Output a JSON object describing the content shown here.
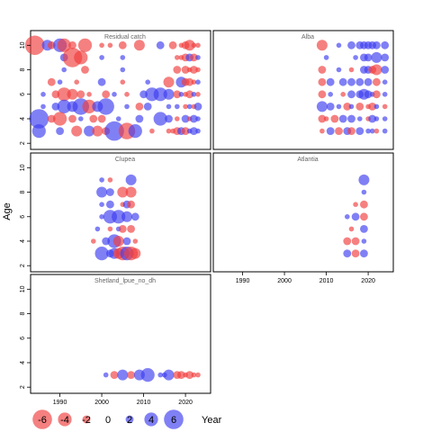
{
  "chart_data": {
    "type": "scatter",
    "encoding": "bubble (size = |residual|, red = negative, blue = positive)",
    "ylabel": "Age",
    "xlabel": "Year",
    "xlim": [
      1983,
      2026
    ],
    "ylim": [
      1.5,
      11.2
    ],
    "x_ticks": [
      1990,
      2000,
      2010,
      2020
    ],
    "y_ticks": [
      2,
      4,
      6,
      8,
      10
    ],
    "colors": {
      "positive": "#3c3cf0",
      "negative": "#f03c3c"
    },
    "legend": {
      "values": [
        -6,
        -4,
        -2,
        0,
        2,
        4,
        6
      ],
      "labels": [
        "-6",
        "-4",
        "-2",
        "0",
        "2",
        "4",
        "6"
      ]
    },
    "panels": [
      {
        "title": "Residual catch",
        "points": [
          [
            1984,
            10,
            -6
          ],
          [
            1987,
            10,
            3
          ],
          [
            1988,
            10,
            -2
          ],
          [
            1990,
            10,
            4
          ],
          [
            1991,
            10,
            -4
          ],
          [
            1993,
            10,
            -2
          ],
          [
            1996,
            10,
            -4
          ],
          [
            2000,
            10,
            -1
          ],
          [
            2002,
            10,
            -1
          ],
          [
            2005,
            10,
            -2
          ],
          [
            2009,
            10,
            -3
          ],
          [
            2014,
            10,
            2
          ],
          [
            2017,
            10,
            -2
          ],
          [
            2019,
            10,
            -1
          ],
          [
            2020,
            10,
            -2
          ],
          [
            2021,
            10,
            -3
          ],
          [
            2022,
            10,
            -1
          ],
          [
            2023,
            10,
            -1
          ],
          [
            1991,
            9,
            2
          ],
          [
            1993,
            9,
            -6
          ],
          [
            1995,
            9,
            -4
          ],
          [
            2000,
            9,
            1
          ],
          [
            2005,
            9,
            1
          ],
          [
            2018,
            9,
            -1
          ],
          [
            2019,
            9,
            -1
          ],
          [
            2020,
            9,
            -2
          ],
          [
            2021,
            9,
            2
          ],
          [
            2022,
            9,
            -2
          ],
          [
            2023,
            9,
            1
          ],
          [
            1991,
            8,
            1
          ],
          [
            1996,
            8,
            -2
          ],
          [
            2005,
            8,
            1
          ],
          [
            2018,
            8,
            -2
          ],
          [
            2020,
            8,
            -2
          ],
          [
            2021,
            8,
            -1
          ],
          [
            2022,
            8,
            -2
          ],
          [
            2023,
            8,
            -1
          ],
          [
            1988,
            7,
            -2
          ],
          [
            1990,
            7,
            1
          ],
          [
            1994,
            7,
            -1
          ],
          [
            2000,
            7,
            2
          ],
          [
            2005,
            7,
            -1
          ],
          [
            2011,
            7,
            1
          ],
          [
            2016,
            7,
            -3
          ],
          [
            2019,
            7,
            3
          ],
          [
            2020,
            7,
            -2
          ],
          [
            2021,
            7,
            -2
          ],
          [
            2022,
            7,
            -1
          ],
          [
            2023,
            7,
            1
          ],
          [
            1986,
            6,
            1
          ],
          [
            1989,
            6,
            -2
          ],
          [
            1991,
            6,
            -4
          ],
          [
            1993,
            6,
            -3
          ],
          [
            1995,
            6,
            -2
          ],
          [
            1997,
            6,
            -1
          ],
          [
            2001,
            6,
            -2
          ],
          [
            2003,
            6,
            1
          ],
          [
            2006,
            6,
            -1
          ],
          [
            2010,
            6,
            2
          ],
          [
            2012,
            6,
            4
          ],
          [
            2014,
            6,
            4
          ],
          [
            2016,
            6,
            3
          ],
          [
            2018,
            6,
            -2
          ],
          [
            2019,
            6,
            1
          ],
          [
            2020,
            6,
            -1
          ],
          [
            2021,
            6,
            -2
          ],
          [
            2022,
            6,
            1
          ],
          [
            2023,
            6,
            -1
          ],
          [
            1986,
            5,
            1
          ],
          [
            1989,
            5,
            2
          ],
          [
            1991,
            5,
            4
          ],
          [
            1993,
            5,
            3
          ],
          [
            1995,
            5,
            5
          ],
          [
            1997,
            5,
            -4
          ],
          [
            1999,
            5,
            3
          ],
          [
            2001,
            5,
            5
          ],
          [
            2006,
            5,
            1
          ],
          [
            2009,
            5,
            -2
          ],
          [
            2011,
            5,
            2
          ],
          [
            2016,
            5,
            1
          ],
          [
            2018,
            5,
            1
          ],
          [
            2020,
            5,
            -1
          ],
          [
            2021,
            5,
            1
          ],
          [
            2022,
            5,
            -1
          ],
          [
            2023,
            5,
            2
          ],
          [
            1985,
            4,
            6
          ],
          [
            1988,
            4,
            -2
          ],
          [
            1990,
            4,
            -4
          ],
          [
            1993,
            4,
            -2
          ],
          [
            1995,
            4,
            1
          ],
          [
            1998,
            4,
            -2
          ],
          [
            2000,
            4,
            -2
          ],
          [
            2004,
            4,
            1
          ],
          [
            2009,
            4,
            2
          ],
          [
            2014,
            4,
            4
          ],
          [
            2016,
            4,
            2
          ],
          [
            2018,
            4,
            -1
          ],
          [
            2020,
            4,
            2
          ],
          [
            2021,
            4,
            -1
          ],
          [
            2022,
            4,
            2
          ],
          [
            2023,
            4,
            1
          ],
          [
            1985,
            3,
            4
          ],
          [
            1990,
            3,
            2
          ],
          [
            1994,
            3,
            -3
          ],
          [
            1997,
            3,
            3
          ],
          [
            1999,
            3,
            -3
          ],
          [
            2001,
            3,
            -2
          ],
          [
            2003,
            3,
            6
          ],
          [
            2006,
            3,
            -5
          ],
          [
            2008,
            3,
            4
          ],
          [
            2012,
            3,
            -1
          ],
          [
            2016,
            3,
            -1
          ],
          [
            2017,
            3,
            -1
          ],
          [
            2018,
            3,
            -2
          ],
          [
            2019,
            3,
            2
          ],
          [
            2020,
            3,
            -2
          ],
          [
            2021,
            3,
            1
          ],
          [
            2022,
            3,
            2
          ],
          [
            2023,
            3,
            1
          ]
        ]
      },
      {
        "title": "Alba",
        "points": [
          [
            2009,
            10,
            -3
          ],
          [
            2013,
            10,
            1
          ],
          [
            2016,
            10,
            2
          ],
          [
            2018,
            10,
            2
          ],
          [
            2019,
            10,
            2
          ],
          [
            2020,
            10,
            2
          ],
          [
            2021,
            10,
            2
          ],
          [
            2022,
            10,
            2
          ],
          [
            2024,
            10,
            2
          ],
          [
            2010,
            9,
            1
          ],
          [
            2017,
            9,
            1
          ],
          [
            2019,
            9,
            2
          ],
          [
            2020,
            9,
            2
          ],
          [
            2022,
            9,
            3
          ],
          [
            2024,
            9,
            2
          ],
          [
            2009,
            8,
            -2
          ],
          [
            2013,
            8,
            1
          ],
          [
            2016,
            8,
            -1
          ],
          [
            2019,
            8,
            2
          ],
          [
            2020,
            8,
            2
          ],
          [
            2021,
            8,
            -2
          ],
          [
            2022,
            8,
            -3
          ],
          [
            2024,
            8,
            2
          ],
          [
            2009,
            7,
            -2
          ],
          [
            2011,
            7,
            2
          ],
          [
            2014,
            7,
            2
          ],
          [
            2016,
            7,
            2
          ],
          [
            2018,
            7,
            2
          ],
          [
            2020,
            7,
            2
          ],
          [
            2022,
            7,
            -2
          ],
          [
            2024,
            7,
            1
          ],
          [
            2009,
            6,
            -2
          ],
          [
            2011,
            6,
            1
          ],
          [
            2014,
            6,
            -1
          ],
          [
            2016,
            6,
            2
          ],
          [
            2018,
            6,
            2
          ],
          [
            2019,
            6,
            3
          ],
          [
            2020,
            6,
            2
          ],
          [
            2021,
            6,
            1
          ],
          [
            2022,
            6,
            -2
          ],
          [
            2024,
            6,
            1
          ],
          [
            2009,
            5,
            3
          ],
          [
            2011,
            5,
            2
          ],
          [
            2013,
            5,
            1
          ],
          [
            2015,
            5,
            -2
          ],
          [
            2016,
            5,
            1
          ],
          [
            2018,
            5,
            -2
          ],
          [
            2020,
            5,
            -1
          ],
          [
            2021,
            5,
            -2
          ],
          [
            2022,
            5,
            1
          ],
          [
            2024,
            5,
            -1
          ],
          [
            2009,
            4,
            -2
          ],
          [
            2010,
            4,
            -1
          ],
          [
            2012,
            4,
            -2
          ],
          [
            2014,
            4,
            2
          ],
          [
            2016,
            4,
            2
          ],
          [
            2018,
            4,
            1
          ],
          [
            2020,
            4,
            -1
          ],
          [
            2021,
            4,
            2
          ],
          [
            2022,
            4,
            1
          ],
          [
            2024,
            4,
            1
          ],
          [
            2009,
            3,
            -1
          ],
          [
            2011,
            3,
            2
          ],
          [
            2013,
            3,
            -2
          ],
          [
            2015,
            3,
            2
          ],
          [
            2016,
            3,
            -2
          ],
          [
            2018,
            3,
            2
          ],
          [
            2020,
            3,
            1
          ],
          [
            2021,
            3,
            1
          ],
          [
            2022,
            3,
            -1
          ],
          [
            2024,
            3,
            1
          ]
        ]
      },
      {
        "title": "Clupea",
        "points": [
          [
            2000,
            9,
            1
          ],
          [
            2002,
            9,
            -1
          ],
          [
            2007,
            9,
            3
          ],
          [
            2000,
            8,
            3
          ],
          [
            2002,
            8,
            2
          ],
          [
            2005,
            8,
            -3
          ],
          [
            2007,
            8,
            -3
          ],
          [
            2000,
            7,
            1
          ],
          [
            2002,
            7,
            2
          ],
          [
            2005,
            7,
            -1
          ],
          [
            2006,
            7,
            2
          ],
          [
            2007,
            7,
            -2
          ],
          [
            2000,
            6,
            1
          ],
          [
            2002,
            6,
            4
          ],
          [
            2004,
            6,
            4
          ],
          [
            2006,
            6,
            3
          ],
          [
            2008,
            6,
            2
          ],
          [
            1999,
            5,
            1
          ],
          [
            2002,
            5,
            -1
          ],
          [
            2004,
            5,
            1
          ],
          [
            2005,
            5,
            -2
          ],
          [
            2007,
            5,
            -2
          ],
          [
            1998,
            4,
            -1
          ],
          [
            2001,
            4,
            2
          ],
          [
            2003,
            4,
            4
          ],
          [
            2004,
            4,
            -3
          ],
          [
            2006,
            4,
            2
          ],
          [
            2008,
            4,
            -1
          ],
          [
            2000,
            3,
            4
          ],
          [
            2002,
            3,
            2
          ],
          [
            2003,
            3,
            3
          ],
          [
            2004,
            3,
            -3
          ],
          [
            2005,
            3,
            -4
          ],
          [
            2006,
            3,
            4
          ],
          [
            2007,
            3,
            -4
          ],
          [
            2008,
            3,
            -3
          ]
        ]
      },
      {
        "title": "Atlantia",
        "points": [
          [
            2019,
            9,
            3
          ],
          [
            2019,
            8,
            1
          ],
          [
            2017,
            7,
            -1
          ],
          [
            2019,
            7,
            -2
          ],
          [
            2015,
            6,
            1
          ],
          [
            2017,
            6,
            2
          ],
          [
            2019,
            6,
            -2
          ],
          [
            2016,
            5,
            -1
          ],
          [
            2019,
            5,
            2
          ],
          [
            2015,
            4,
            -2
          ],
          [
            2017,
            4,
            -2
          ],
          [
            2019,
            4,
            1
          ],
          [
            2015,
            3,
            2
          ],
          [
            2017,
            3,
            -2
          ],
          [
            2019,
            3,
            2
          ]
        ]
      },
      {
        "title": "Shetland_lpue_no_dh",
        "points": [
          [
            2001,
            3,
            1
          ],
          [
            2003,
            3,
            -2
          ],
          [
            2005,
            3,
            3
          ],
          [
            2007,
            3,
            -2
          ],
          [
            2009,
            3,
            3
          ],
          [
            2011,
            3,
            4
          ],
          [
            2014,
            3,
            1
          ],
          [
            2015,
            3,
            1
          ],
          [
            2016,
            3,
            3
          ],
          [
            2018,
            3,
            -2
          ],
          [
            2019,
            3,
            -2
          ],
          [
            2020,
            3,
            -1
          ],
          [
            2021,
            3,
            -2
          ],
          [
            2022,
            3,
            -1
          ],
          [
            2023,
            3,
            -1
          ]
        ]
      }
    ]
  }
}
